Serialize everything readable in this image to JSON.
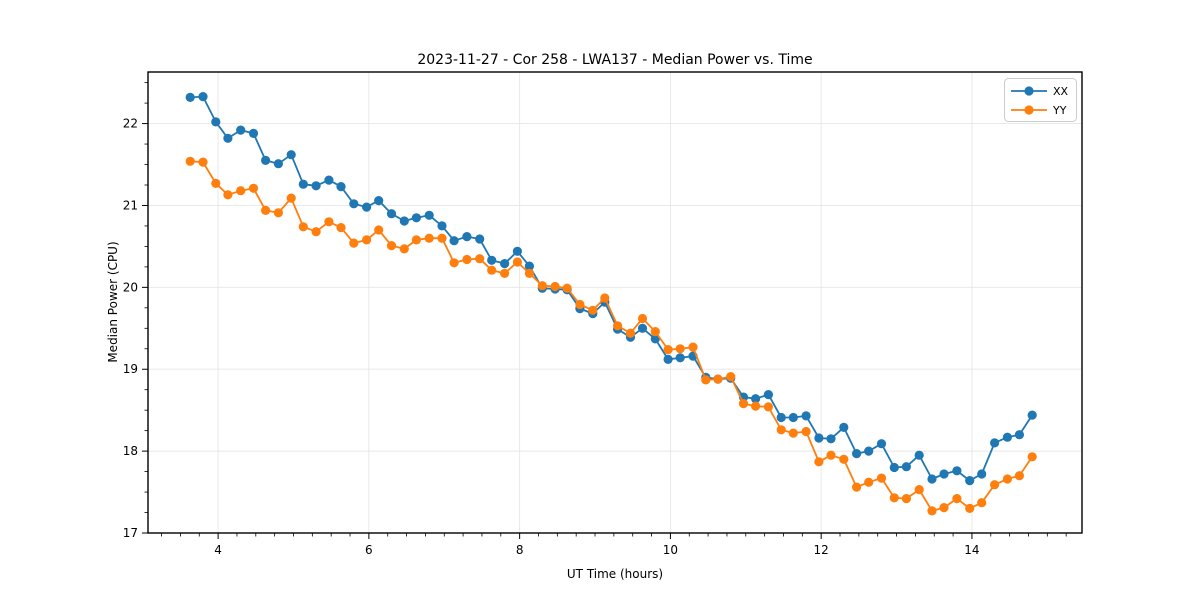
{
  "chart_data": {
    "type": "line",
    "title": "2023-11-27 - Cor 258 - LWA137 - Median Power vs. Time",
    "xlabel": "UT Time (hours)",
    "ylabel": "Median Power (CPU)",
    "xlim": [
      3.07,
      15.46
    ],
    "ylim": [
      17.0,
      22.63
    ],
    "xticks": [
      4,
      6,
      8,
      10,
      12,
      14
    ],
    "yticks": [
      17,
      18,
      19,
      20,
      21,
      22
    ],
    "minor_tick_step_x": 0.25,
    "minor_tick_step_y": 0.25,
    "grid": "major-only",
    "grid_color": "#e6e6e6",
    "background_color": "#ffffff",
    "legend_position": "upper-right",
    "marker": "circle",
    "x": [
      3.63,
      3.8,
      3.97,
      4.13,
      4.3,
      4.47,
      4.63,
      4.8,
      4.97,
      5.13,
      5.3,
      5.47,
      5.63,
      5.8,
      5.97,
      6.13,
      6.3,
      6.47,
      6.63,
      6.8,
      6.97,
      7.13,
      7.3,
      7.47,
      7.63,
      7.8,
      7.97,
      8.13,
      8.3,
      8.47,
      8.63,
      8.8,
      8.97,
      9.13,
      9.3,
      9.47,
      9.63,
      9.8,
      9.97,
      10.13,
      10.3,
      10.47,
      10.63,
      10.8,
      10.97,
      11.13,
      11.3,
      11.47,
      11.63,
      11.8,
      11.97,
      12.13,
      12.3,
      12.47,
      12.63,
      12.8,
      12.97,
      13.13,
      13.3,
      13.47,
      13.63,
      13.8,
      13.97,
      14.13,
      14.3,
      14.47,
      14.63,
      14.8
    ],
    "series": [
      {
        "name": "XX",
        "color": "#1f77b4",
        "values": [
          22.32,
          22.33,
          22.02,
          21.82,
          21.92,
          21.88,
          21.55,
          21.51,
          21.62,
          21.26,
          21.24,
          21.31,
          21.23,
          21.02,
          20.98,
          21.06,
          20.9,
          20.81,
          20.85,
          20.88,
          20.75,
          20.57,
          20.62,
          20.59,
          20.33,
          20.29,
          20.44,
          20.26,
          19.99,
          19.98,
          19.97,
          19.74,
          19.68,
          19.82,
          19.49,
          19.39,
          19.5,
          19.37,
          19.12,
          19.14,
          19.16,
          18.9,
          18.88,
          18.89,
          18.66,
          18.64,
          18.69,
          18.41,
          18.41,
          18.43,
          18.16,
          18.15,
          18.29,
          17.97,
          18.0,
          18.09,
          17.8,
          17.81,
          17.95,
          17.66,
          17.72,
          17.76,
          17.64,
          17.72,
          18.1,
          18.17,
          18.2,
          18.44
        ]
      },
      {
        "name": "YY",
        "color": "#ff7f0e",
        "values": [
          21.54,
          21.53,
          21.27,
          21.13,
          21.18,
          21.21,
          20.94,
          20.91,
          21.09,
          20.74,
          20.68,
          20.8,
          20.73,
          20.54,
          20.58,
          20.7,
          20.51,
          20.47,
          20.58,
          20.6,
          20.6,
          20.3,
          20.34,
          20.35,
          20.21,
          20.17,
          20.31,
          20.17,
          20.02,
          20.01,
          19.99,
          19.79,
          19.72,
          19.87,
          19.53,
          19.44,
          19.62,
          19.46,
          19.24,
          19.25,
          19.27,
          18.87,
          18.88,
          18.91,
          18.58,
          18.55,
          18.54,
          18.26,
          18.22,
          18.24,
          17.87,
          17.95,
          17.9,
          17.56,
          17.62,
          17.67,
          17.43,
          17.42,
          17.53,
          17.27,
          17.31,
          17.42,
          17.3,
          17.37,
          17.59,
          17.66,
          17.7,
          17.93
        ]
      }
    ]
  },
  "layout_values": {
    "x_tick_labels": [
      "4",
      "6",
      "8",
      "10",
      "12",
      "14"
    ],
    "y_tick_labels": [
      "17",
      "18",
      "19",
      "20",
      "21",
      "22"
    ]
  }
}
